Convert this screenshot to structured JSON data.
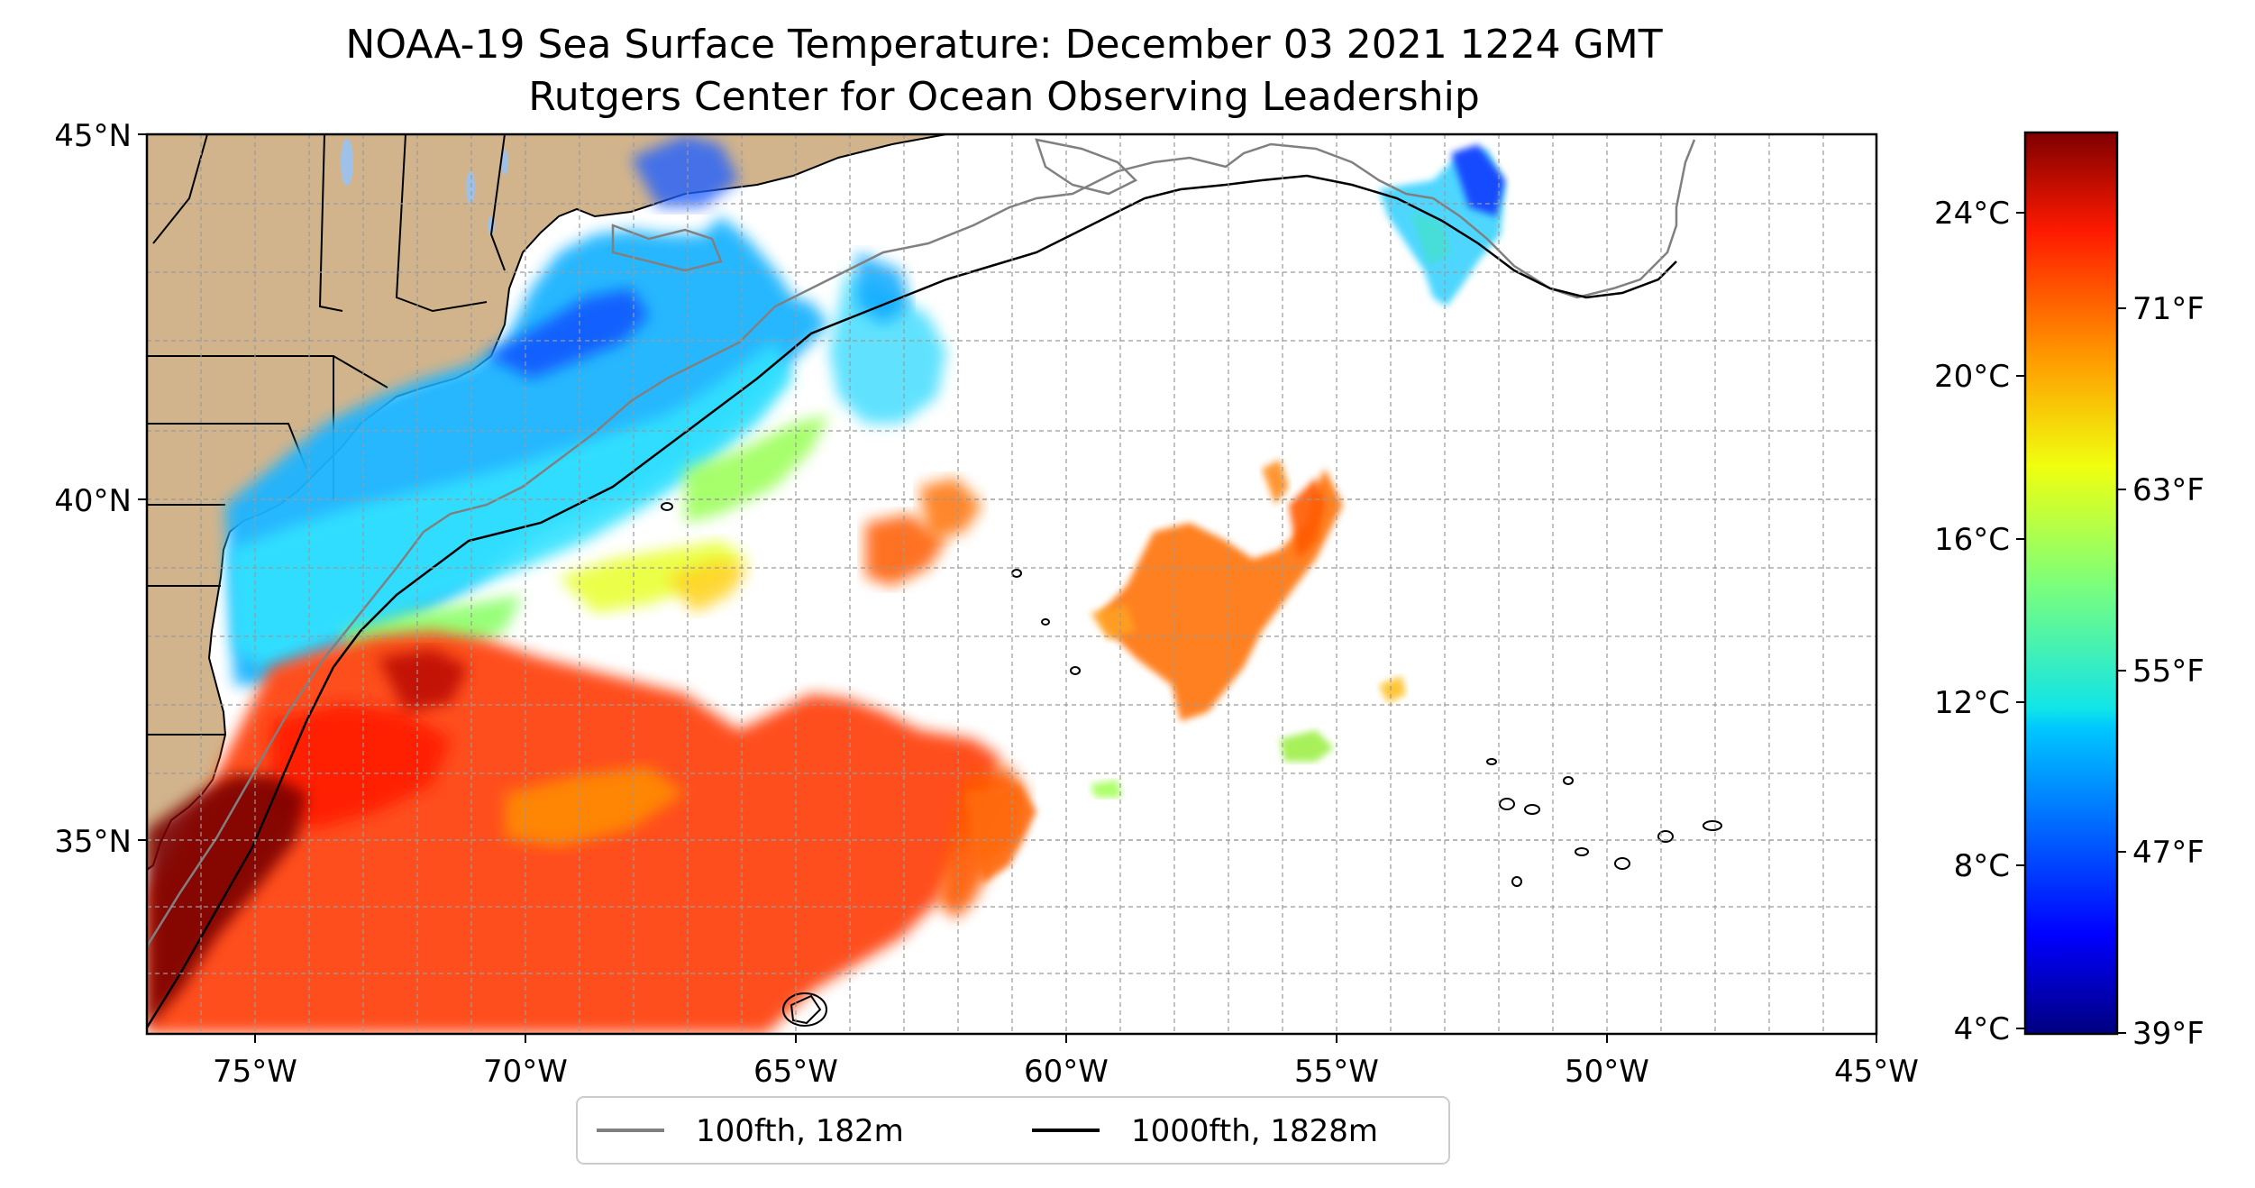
{
  "title": {
    "line1": "NOAA-19 Sea Surface Temperature: December 03 2021 1224 GMT",
    "line2": "Rutgers Center for Ocean Observing Leadership"
  },
  "map": {
    "lat_range": [
      32.5,
      45
    ],
    "lon_range": [
      -77,
      -45
    ],
    "lat_ticks": [
      {
        "value": 45,
        "label": "45°N"
      },
      {
        "value": 40,
        "label": "40°N"
      },
      {
        "value": 35,
        "label": "35°N"
      }
    ],
    "lon_ticks": [
      {
        "value": -75,
        "label": "75°W"
      },
      {
        "value": -70,
        "label": "70°W"
      },
      {
        "value": -65,
        "label": "65°W"
      },
      {
        "value": -60,
        "label": "60°W"
      },
      {
        "value": -55,
        "label": "55°W"
      },
      {
        "value": -50,
        "label": "50°W"
      },
      {
        "value": -45,
        "label": "45°W"
      }
    ],
    "gridlines": true,
    "land_color": "#d2b48c",
    "lake_color": "#9fc1e8"
  },
  "colorbar": {
    "colormap": "jet",
    "celsius_ticks": [
      {
        "value": 24,
        "label": "24°C"
      },
      {
        "value": 20,
        "label": "20°C"
      },
      {
        "value": 16,
        "label": "16°C"
      },
      {
        "value": 12,
        "label": "12°C"
      },
      {
        "value": 8,
        "label": "8°C"
      },
      {
        "value": 4,
        "label": "4°C"
      }
    ],
    "fahrenheit_ticks": [
      {
        "value": 71,
        "label": "71°F"
      },
      {
        "value": 63,
        "label": "63°F"
      },
      {
        "value": 55,
        "label": "55°F"
      },
      {
        "value": 47,
        "label": "47°F"
      },
      {
        "value": 39,
        "label": "39°F"
      }
    ],
    "range_c": [
      4,
      26
    ]
  },
  "legend": {
    "items": [
      {
        "label": "100fth, 182m",
        "color": "#808080"
      },
      {
        "label": "1000fth, 1828m",
        "color": "#000000"
      }
    ]
  }
}
